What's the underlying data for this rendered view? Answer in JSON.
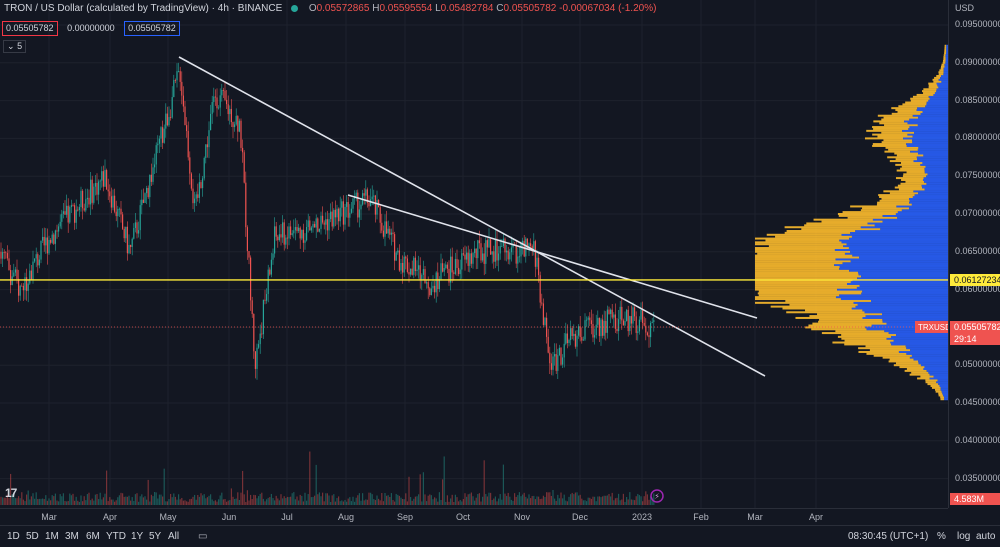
{
  "header": {
    "title": "TRON / US Dollar (calculated by TradingView) · 4h · BINANCE",
    "ohlc": [
      {
        "key": "O",
        "value": "0.05572865"
      },
      {
        "key": "H",
        "value": "0.05595554"
      },
      {
        "key": "L",
        "value": "0.05482784"
      },
      {
        "key": "C",
        "value": "0.05505782"
      }
    ],
    "change": "-0.00067034 (-1.20%)"
  },
  "price_boxes": [
    "0.05505782",
    "0.00000000",
    "0.05505782"
  ],
  "indicator_count": "5",
  "price_axis": {
    "currency": "USD",
    "ticks": [
      "0.09500000",
      "0.09000000",
      "0.08500000",
      "0.08000000",
      "0.07500000",
      "0.07000000",
      "0.06500000",
      "0.06000000",
      "0.05500000",
      "0.05000000",
      "0.04500000",
      "0.04000000",
      "0.03500000"
    ],
    "horizontal_line_price": "0.06127234",
    "current_symbol": "TRXUSD",
    "current_price": "0.05505782",
    "countdown": "29:14",
    "volume_tag": "4.583M"
  },
  "time_axis": [
    "Mar",
    "Apr",
    "May",
    "Jun",
    "Jul",
    "Aug",
    "Sep",
    "Oct",
    "Nov",
    "Dec",
    "2023",
    "Feb",
    "Mar",
    "Apr"
  ],
  "bottom_bar": {
    "ranges": [
      "1D",
      "5D",
      "1M",
      "3M",
      "6M",
      "YTD",
      "1Y",
      "5Y",
      "All"
    ],
    "time": "08:30:45 (UTC+1)",
    "percent": "%",
    "log": "log",
    "auto": "auto"
  },
  "colors": {
    "up": "#26a69a",
    "down": "#ef5350",
    "hline": "#ffeb3b",
    "profile_gold": "#f7b92d",
    "profile_blue": "#2962ff"
  },
  "chart_data": {
    "type": "candlestick",
    "symbol": "TRXUSD",
    "timeframe": "4h",
    "x_range": [
      "Mar",
      "Apr"
    ],
    "ylim": [
      0.033,
      0.096
    ],
    "close_path": [
      [
        "Feb",
        0.065
      ],
      [
        "Mar",
        0.06
      ],
      [
        "Apr",
        0.067
      ],
      [
        "Apr",
        0.075
      ],
      [
        "May",
        0.065
      ],
      [
        "May",
        0.089
      ],
      [
        "May",
        0.07
      ],
      [
        "Jun",
        0.086
      ],
      [
        "Jun",
        0.082
      ],
      [
        "Jun",
        0.05
      ],
      [
        "Jul",
        0.067
      ],
      [
        "Jul",
        0.068
      ],
      [
        "Aug",
        0.07
      ],
      [
        "Aug",
        0.072
      ],
      [
        "Sep",
        0.064
      ],
      [
        "Oct",
        0.061
      ],
      [
        "Oct",
        0.065
      ],
      [
        "Nov",
        0.065
      ],
      [
        "Nov",
        0.05
      ],
      [
        "Dec",
        0.054
      ],
      [
        "Dec",
        0.056
      ],
      [
        "2023",
        0.056
      ],
      [
        "2023",
        0.05506
      ]
    ]
  }
}
